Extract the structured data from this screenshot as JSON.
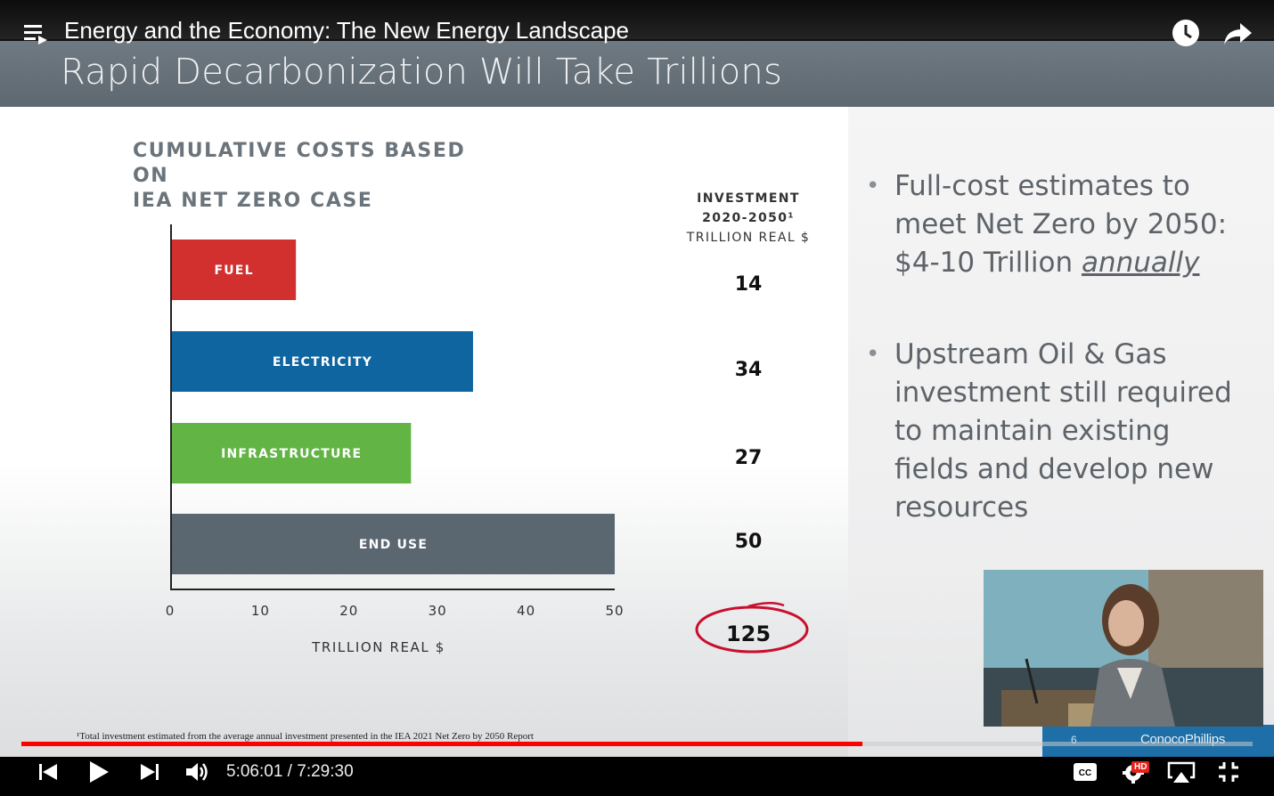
{
  "player": {
    "title": "Energy and the Economy: The New Energy Landscape",
    "time_current": "5:06:01",
    "time_separator": " / ",
    "time_total": "7:29:30",
    "progress_fraction": 0.683,
    "hd_badge": "HD",
    "colors": {
      "progress": "#ff0000",
      "bar": "#000000"
    }
  },
  "slide": {
    "title": "Rapid Decarbonization Will Take Trillions",
    "chart_title_line1": "CUMULATIVE COSTS BASED ON",
    "chart_title_line2": "IEA NET ZERO CASE",
    "investment_head": {
      "line1": "INVESTMENT",
      "line2": "2020-2050¹",
      "line3": "TRILLION REAL $"
    },
    "total": "125",
    "bullets": [
      {
        "text": "Full-cost estimates to meet Net Zero by 2050: $4-10 Trillion ",
        "emphasis": "annually"
      },
      {
        "text": "Upstream Oil & Gas investment still required to maintain existing fields and develop new resources",
        "emphasis": ""
      }
    ],
    "footnote": "¹Total investment estimated from the average annual investment presented in the IEA 2021 Net Zero by 2050 Report",
    "page_number": "6",
    "brand": "ConocoPhillips"
  },
  "chart_data": {
    "type": "bar",
    "orientation": "horizontal",
    "categories": [
      "FUEL",
      "ELECTRICITY",
      "INFRASTRUCTURE",
      "END USE"
    ],
    "values": [
      14,
      34,
      27,
      50
    ],
    "value_labels": [
      "14",
      "34",
      "27",
      "50"
    ],
    "colors": [
      "#d1302f",
      "#0f65a0",
      "#62b445",
      "#5a6670"
    ],
    "xlabel": "TRILLION REAL $",
    "xlim": [
      0,
      50
    ],
    "xticks": [
      "0",
      "10",
      "20",
      "30",
      "40",
      "50"
    ],
    "title": "CUMULATIVE COSTS BASED ON IEA NET ZERO CASE"
  },
  "icons": {
    "playlist": "playlist-icon",
    "watch_later": "clock-icon",
    "share": "share-arrow-icon",
    "prev": "skip-previous-icon",
    "play": "play-icon",
    "next": "skip-next-icon",
    "volume": "volume-icon",
    "captions": "captions-icon",
    "settings": "settings-gear-icon",
    "airplay": "airplay-icon",
    "exit_fullscreen": "exit-fullscreen-icon"
  }
}
